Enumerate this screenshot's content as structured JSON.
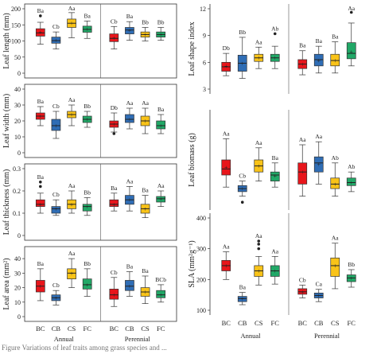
{
  "colors": {
    "BC": "#e8151b",
    "CB": "#2f6db5",
    "CS": "#f9c318",
    "FC": "#21a867"
  },
  "groups": [
    "Annual",
    "Perennial"
  ],
  "caption": "Figure  Variations of leaf traits among grass species and ...",
  "chart_data": [
    {
      "type": "box",
      "ylabel": "Leaf length (mm)",
      "ylim": [
        0,
        200
      ],
      "yticks": [
        0,
        50,
        100,
        150,
        200
      ],
      "categories": [
        "BC",
        "CB",
        "CS",
        "FC",
        "BC",
        "CB",
        "CS",
        "FC"
      ],
      "boxes": [
        {
          "min": 90,
          "q1": 115,
          "med": 125,
          "q3": 138,
          "max": 158,
          "mean": 127,
          "outliers": [
            178
          ],
          "letter": "Ba"
        },
        {
          "min": 75,
          "q1": 93,
          "med": 101,
          "q3": 112,
          "max": 128,
          "mean": 103,
          "outliers": [],
          "letter": "Cb"
        },
        {
          "min": 110,
          "q1": 142,
          "med": 155,
          "q3": 168,
          "max": 188,
          "mean": 155,
          "outliers": [],
          "letter": "Aa"
        },
        {
          "min": 108,
          "q1": 127,
          "med": 136,
          "q3": 146,
          "max": 162,
          "mean": 137,
          "outliers": [],
          "letter": "Ba"
        },
        {
          "min": 75,
          "q1": 98,
          "med": 108,
          "q3": 122,
          "max": 145,
          "mean": 110,
          "outliers": [],
          "letter": "Cb"
        },
        {
          "min": 102,
          "q1": 122,
          "med": 134,
          "q3": 142,
          "max": 160,
          "mean": 133,
          "outliers": [],
          "letter": "Ba"
        },
        {
          "min": 100,
          "q1": 112,
          "med": 120,
          "q3": 128,
          "max": 142,
          "mean": 120,
          "outliers": [],
          "letter": "Bb"
        },
        {
          "min": 102,
          "q1": 112,
          "med": 120,
          "q3": 128,
          "max": 142,
          "mean": 120,
          "outliers": [],
          "letter": "Bb"
        }
      ]
    },
    {
      "type": "box",
      "ylabel": "Leaf width (mm)",
      "ylim": [
        0,
        40
      ],
      "yticks": [
        0,
        10,
        20,
        30,
        40
      ],
      "categories": [
        "BC",
        "CB",
        "CS",
        "FC",
        "BC",
        "CB",
        "CS",
        "FC"
      ],
      "boxes": [
        {
          "min": 17,
          "q1": 21,
          "med": 23,
          "q3": 25,
          "max": 29,
          "mean": 23,
          "outliers": [],
          "letter": "Ba"
        },
        {
          "min": 9,
          "q1": 14,
          "med": 17,
          "q3": 21,
          "max": 26,
          "mean": 17,
          "outliers": [],
          "letter": "Cb"
        },
        {
          "min": 17,
          "q1": 22,
          "med": 24,
          "q3": 26,
          "max": 30,
          "mean": 24,
          "outliers": [],
          "letter": "Aa"
        },
        {
          "min": 16,
          "q1": 19,
          "med": 21,
          "q3": 23,
          "max": 26,
          "mean": 21,
          "outliers": [],
          "letter": "Bb"
        },
        {
          "min": 13,
          "q1": 16,
          "med": 18,
          "q3": 20,
          "max": 25,
          "mean": 18,
          "outliers": [
            12
          ],
          "letter": "Db"
        },
        {
          "min": 15,
          "q1": 19,
          "med": 21,
          "q3": 24,
          "max": 28,
          "mean": 21,
          "outliers": [],
          "letter": "Aa"
        },
        {
          "min": 12,
          "q1": 17,
          "med": 20,
          "q3": 23,
          "max": 28,
          "mean": 20,
          "outliers": [],
          "letter": "Aa"
        },
        {
          "min": 12,
          "q1": 15,
          "med": 17,
          "q3": 20,
          "max": 24,
          "mean": 17,
          "outliers": [],
          "letter": "Ba"
        }
      ]
    },
    {
      "type": "box",
      "ylabel": "Leaf thickness (mm)",
      "ylim": [
        0,
        0.3
      ],
      "yticks": [
        0.0,
        0.1,
        0.2,
        0.3
      ],
      "categories": [
        "BC",
        "CB",
        "CS",
        "FC",
        "BC",
        "CB",
        "CS",
        "FC"
      ],
      "boxes": [
        {
          "min": 0.1,
          "q1": 0.13,
          "med": 0.14,
          "q3": 0.16,
          "max": 0.19,
          "mean": 0.14,
          "outliers": [
            0.24,
            0.22
          ],
          "letter": "Ba"
        },
        {
          "min": 0.09,
          "q1": 0.1,
          "med": 0.12,
          "q3": 0.13,
          "max": 0.16,
          "mean": 0.12,
          "outliers": [],
          "letter": "Cb"
        },
        {
          "min": 0.1,
          "q1": 0.12,
          "med": 0.14,
          "q3": 0.16,
          "max": 0.2,
          "mean": 0.14,
          "outliers": [],
          "letter": "Aa"
        },
        {
          "min": 0.09,
          "q1": 0.11,
          "med": 0.13,
          "q3": 0.14,
          "max": 0.17,
          "mean": 0.13,
          "outliers": [],
          "letter": "Bb"
        },
        {
          "min": 0.11,
          "q1": 0.13,
          "med": 0.14,
          "q3": 0.16,
          "max": 0.19,
          "mean": 0.14,
          "outliers": [],
          "letter": "Ba"
        },
        {
          "min": 0.11,
          "q1": 0.14,
          "med": 0.16,
          "q3": 0.18,
          "max": 0.22,
          "mean": 0.16,
          "outliers": [],
          "letter": "Aa"
        },
        {
          "min": 0.08,
          "q1": 0.1,
          "med": 0.12,
          "q3": 0.14,
          "max": 0.18,
          "mean": 0.12,
          "outliers": [],
          "letter": "Ba"
        },
        {
          "min": 0.13,
          "q1": 0.15,
          "med": 0.165,
          "q3": 0.175,
          "max": 0.2,
          "mean": 0.165,
          "outliers": [],
          "letter": "Aa"
        }
      ]
    },
    {
      "type": "box",
      "ylabel": "Leaf area (mm²)",
      "ylim": [
        0,
        45
      ],
      "yticks": [
        0,
        10,
        20,
        30,
        40
      ],
      "categories": [
        "BC",
        "CB",
        "CS",
        "FC",
        "BC",
        "CB",
        "CS",
        "FC"
      ],
      "boxes": [
        {
          "min": 11,
          "q1": 17,
          "med": 21,
          "q3": 25,
          "max": 33,
          "mean": 21,
          "outliers": [],
          "letter": "Ba"
        },
        {
          "min": 8,
          "q1": 11,
          "med": 13,
          "q3": 15,
          "max": 18,
          "mean": 13,
          "outliers": [],
          "letter": "Cb"
        },
        {
          "min": 20,
          "q1": 26,
          "med": 30,
          "q3": 33,
          "max": 40,
          "mean": 30,
          "outliers": [],
          "letter": "Aa"
        },
        {
          "min": 14,
          "q1": 19,
          "med": 22,
          "q3": 26,
          "max": 33,
          "mean": 22,
          "outliers": [],
          "letter": "Bb"
        },
        {
          "min": 7,
          "q1": 12,
          "med": 15,
          "q3": 19,
          "max": 27,
          "mean": 15,
          "outliers": [],
          "letter": "Cb"
        },
        {
          "min": 14,
          "q1": 18,
          "med": 21,
          "q3": 25,
          "max": 31,
          "mean": 21,
          "outliers": [],
          "letter": "Ba"
        },
        {
          "min": 9,
          "q1": 14,
          "med": 17,
          "q3": 20,
          "max": 28,
          "mean": 17,
          "outliers": [],
          "letter": "Ba"
        },
        {
          "min": 10,
          "q1": 13,
          "med": 15,
          "q3": 18,
          "max": 22,
          "mean": 15,
          "outliers": [],
          "letter": "BCb"
        }
      ]
    },
    {
      "type": "box",
      "ylabel": "Leaf shape index",
      "ylim": [
        3,
        12
      ],
      "yticks": [
        3,
        6,
        9,
        12
      ],
      "categories": [
        "BC",
        "CB",
        "CS",
        "FC",
        "BC",
        "CB",
        "CS",
        "FC"
      ],
      "boxes": [
        {
          "min": 4.5,
          "q1": 5.0,
          "med": 5.5,
          "q3": 6.0,
          "max": 7.0,
          "mean": 5.6,
          "outliers": [],
          "letter": "Db"
        },
        {
          "min": 4.2,
          "q1": 5.0,
          "med": 5.9,
          "q3": 6.8,
          "max": 8.8,
          "mean": 5.9,
          "outliers": [],
          "letter": "Bb"
        },
        {
          "min": 5.3,
          "q1": 6.1,
          "med": 6.5,
          "q3": 6.9,
          "max": 7.7,
          "mean": 6.5,
          "outliers": [],
          "letter": "Aa"
        },
        {
          "min": 5.3,
          "q1": 6.1,
          "med": 6.5,
          "q3": 6.9,
          "max": 7.8,
          "mean": 6.5,
          "outliers": [
            9.2
          ],
          "letter": "Ab"
        },
        {
          "min": 4.6,
          "q1": 5.3,
          "med": 5.8,
          "q3": 6.3,
          "max": 7.3,
          "mean": 5.8,
          "outliers": [],
          "letter": "Ba"
        },
        {
          "min": 4.8,
          "q1": 5.6,
          "med": 6.3,
          "q3": 6.9,
          "max": 7.8,
          "mean": 6.2,
          "outliers": [],
          "letter": "Ba"
        },
        {
          "min": 4.8,
          "q1": 5.6,
          "med": 6.2,
          "q3": 6.9,
          "max": 8.3,
          "mean": 6.2,
          "outliers": [],
          "letter": "Ba"
        },
        {
          "min": 5.6,
          "q1": 6.4,
          "med": 7.0,
          "q3": 8.2,
          "max": 10.4,
          "mean": 7.2,
          "outliers": [
            11.6
          ],
          "letter": "Aa"
        }
      ]
    },
    {
      "type": "box",
      "ylabel": "Leaf biomass (g)",
      "ylim": [
        0,
        0.3
      ],
      "yticks": [],
      "categories": [
        "BC",
        "CB",
        "CS",
        "FC",
        "BC",
        "CB",
        "CS",
        "FC"
      ],
      "boxes": [
        {
          "min": 0.06,
          "q1": 0.1,
          "med": 0.12,
          "q3": 0.15,
          "max": 0.22,
          "mean": 0.125,
          "outliers": [],
          "letter": "Aa"
        },
        {
          "min": 0.03,
          "q1": 0.045,
          "med": 0.055,
          "q3": 0.065,
          "max": 0.08,
          "mean": 0.055,
          "outliers": [
            0.01
          ],
          "letter": "Cb"
        },
        {
          "min": 0.08,
          "q1": 0.11,
          "med": 0.13,
          "q3": 0.15,
          "max": 0.19,
          "mean": 0.13,
          "outliers": [],
          "letter": "Aa"
        },
        {
          "min": 0.06,
          "q1": 0.08,
          "med": 0.1,
          "q3": 0.11,
          "max": 0.14,
          "mean": 0.097,
          "outliers": [],
          "letter": "Ba"
        },
        {
          "min": 0.03,
          "q1": 0.07,
          "med": 0.11,
          "q3": 0.14,
          "max": 0.2,
          "mean": 0.11,
          "outliers": [],
          "letter": "Aa"
        },
        {
          "min": 0.07,
          "q1": 0.11,
          "med": 0.14,
          "q3": 0.16,
          "max": 0.21,
          "mean": 0.135,
          "outliers": [],
          "letter": "Aa"
        },
        {
          "min": 0.03,
          "q1": 0.055,
          "med": 0.07,
          "q3": 0.09,
          "max": 0.14,
          "mean": 0.07,
          "outliers": [],
          "letter": "Ab"
        },
        {
          "min": 0.045,
          "q1": 0.065,
          "med": 0.075,
          "q3": 0.09,
          "max": 0.11,
          "mean": 0.075,
          "outliers": [],
          "letter": "Ab"
        }
      ]
    },
    {
      "type": "box",
      "ylabel": "SLA (mm²g⁻¹)",
      "ylim": [
        100,
        400
      ],
      "yticks": [
        100,
        200,
        300,
        400
      ],
      "categories": [
        "BC",
        "CB",
        "CS",
        "FC",
        "BC",
        "CB",
        "CS",
        "FC"
      ],
      "boxes": [
        {
          "min": 200,
          "q1": 228,
          "med": 245,
          "q3": 262,
          "max": 290,
          "mean": 245,
          "outliers": [],
          "letter": "Aa"
        },
        {
          "min": 118,
          "q1": 128,
          "med": 138,
          "q3": 145,
          "max": 158,
          "mean": 138,
          "outliers": [],
          "letter": "Ba"
        },
        {
          "min": 182,
          "q1": 210,
          "med": 228,
          "q3": 245,
          "max": 275,
          "mean": 228,
          "outliers": [
            325,
            315,
            300
          ],
          "letter": "Aa"
        },
        {
          "min": 185,
          "q1": 210,
          "med": 228,
          "q3": 245,
          "max": 275,
          "mean": 228,
          "outliers": [],
          "letter": "Aa"
        },
        {
          "min": 140,
          "q1": 152,
          "med": 160,
          "q3": 170,
          "max": 182,
          "mean": 160,
          "outliers": [],
          "letter": "Cb"
        },
        {
          "min": 128,
          "q1": 140,
          "med": 148,
          "q3": 156,
          "max": 168,
          "mean": 148,
          "outliers": [],
          "letter": "Ca"
        },
        {
          "min": 170,
          "q1": 210,
          "med": 245,
          "q3": 270,
          "max": 318,
          "mean": 245,
          "outliers": [],
          "letter": "Aa"
        },
        {
          "min": 175,
          "q1": 193,
          "med": 205,
          "q3": 215,
          "max": 232,
          "mean": 205,
          "outliers": [],
          "letter": "Bb"
        }
      ]
    }
  ]
}
